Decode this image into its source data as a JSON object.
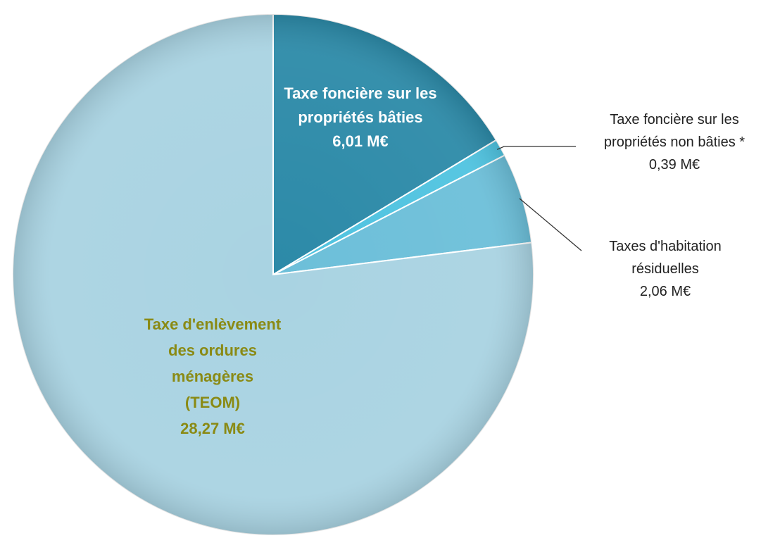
{
  "chart_data": {
    "type": "pie",
    "slices": [
      {
        "label": "Taxe foncière sur les propriétés bâties",
        "label_lines": [
          "Taxe foncière sur les",
          "propriétés bâties"
        ],
        "value": 6.01,
        "value_text": "6,01 M€",
        "color": "#2c8aa8",
        "label_color": "#ffffff"
      },
      {
        "label": "Taxe foncière sur les propriétés non bâties *",
        "label_lines": [
          "Taxe foncière sur les",
          "propriétés non bâties *"
        ],
        "value": 0.39,
        "value_text": "0,39 M€",
        "color": "#4fc3e0",
        "label_color": "#222222"
      },
      {
        "label": "Taxes d'habitation résiduelles",
        "label_lines": [
          "Taxes d'habitation",
          "résiduelles"
        ],
        "value": 2.06,
        "value_text": "2,06 M€",
        "color": "#6cbfd9",
        "label_color": "#222222"
      },
      {
        "label": "Taxe d'enlèvement des ordures ménagères (TEOM)",
        "label_lines": [
          "Taxe d'enlèvement",
          "des ordures",
          "ménagères",
          "(TEOM)"
        ],
        "value": 28.27,
        "value_text": "28,27 M€",
        "color": "#a9d3e2",
        "label_color": "#8a8a14"
      }
    ]
  }
}
